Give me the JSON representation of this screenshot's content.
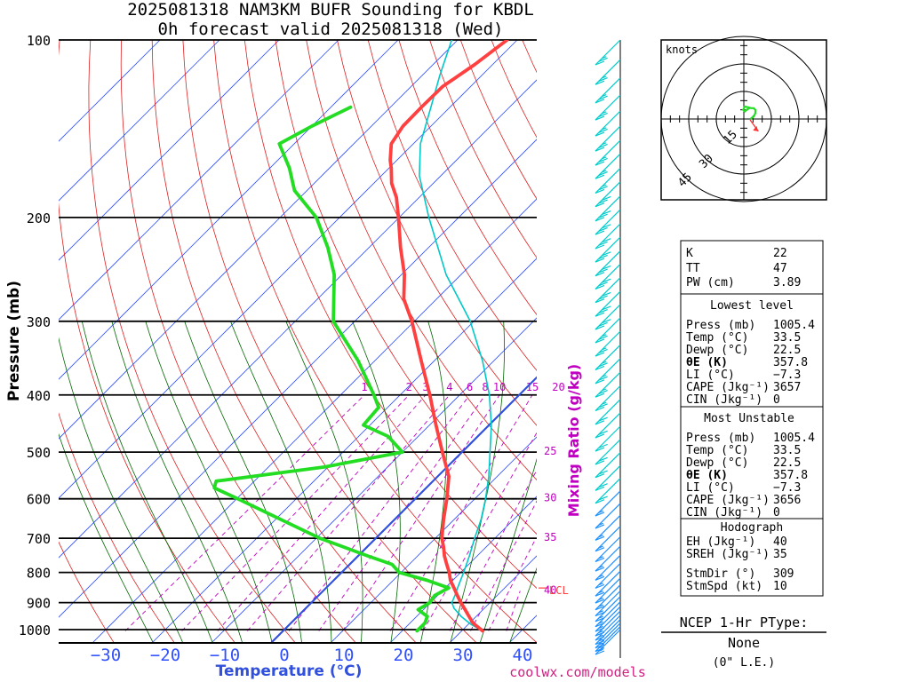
{
  "header": {
    "title_line1": "2025081318 NAM3KM BUFR Sounding for KBDL",
    "title_line2": "0h forecast valid 2025081318 (Wed)"
  },
  "footer": {
    "credit": "coolwx.com/models"
  },
  "colors": {
    "temperature": "#ff4040",
    "dewpoint": "#22dd22",
    "parcel": "#00c8c8",
    "freezing": "#3050dd",
    "isotherm": "#3050ff",
    "dry_adiabat": "#dd2020",
    "moist_adiabat": "#006600",
    "mixing_ratio": "#c000c0",
    "wind_upper": "#00cccc",
    "wind_lower": "#1e90ff",
    "lcl": "#ff4040"
  },
  "chart_data": [
    {
      "type": "line",
      "chart": "skew-T",
      "xlabel": "Temperature (°C)",
      "ylabel": "Pressure (mb)",
      "y_scale": "log",
      "xlim": [
        -40,
        40
      ],
      "ylim": [
        1050,
        100
      ],
      "x_ticks": [
        "−30",
        "−20",
        "−10",
        "0",
        "10",
        "20",
        "30",
        "40"
      ],
      "x_tick_values": [
        -30,
        -20,
        -10,
        0,
        10,
        20,
        30,
        40
      ],
      "y_ticks": [
        "100",
        "200",
        "300",
        "400",
        "500",
        "600",
        "700",
        "800",
        "900",
        "1000"
      ],
      "y_tick_values": [
        100,
        200,
        300,
        400,
        500,
        600,
        700,
        800,
        900,
        1000
      ],
      "grid": true,
      "mixing_ratio_label": "Mixing Ratio (g/kg)",
      "mixing_ratio_lines": [
        {
          "label": "1",
          "p": [
            1005,
            400
          ],
          "t": [
            -26.5,
            -26
          ]
        },
        {
          "label": "2",
          "p": [
            1005,
            400
          ],
          "t": [
            -17,
            -18.5
          ]
        },
        {
          "label": "3",
          "p": [
            1005,
            400
          ],
          "t": [
            -11,
            -15.7
          ]
        },
        {
          "label": "4",
          "p": [
            1005,
            400
          ],
          "t": [
            -6,
            -11.7
          ]
        },
        {
          "label": "6",
          "p": [
            1005,
            400
          ],
          "t": [
            1,
            -8.3
          ]
        },
        {
          "label": "8",
          "p": [
            1005,
            400
          ],
          "t": [
            6,
            -5.7
          ]
        },
        {
          "label": "10",
          "p": [
            1005,
            400
          ],
          "t": [
            10,
            -3.3
          ]
        },
        {
          "label": "15",
          "p": [
            1005,
            400
          ],
          "t": [
            18,
            2.2
          ]
        },
        {
          "label": "20",
          "p": [
            1005,
            400
          ],
          "t": [
            23.5,
            6.6
          ]
        },
        {
          "label": "25",
          "p": [
            1005,
            500
          ],
          "t": [
            28,
            14.2
          ]
        },
        {
          "label": "30",
          "p": [
            1005,
            600
          ],
          "t": [
            31.5,
            20.6
          ]
        },
        {
          "label": "35",
          "p": [
            1005,
            700
          ],
          "t": [
            34.5,
            26.9
          ]
        },
        {
          "label": "40",
          "p": [
            1005,
            860
          ],
          "t": [
            37.5,
            33.1
          ]
        }
      ],
      "lcl_label": "LCL",
      "lcl_pressure": 850,
      "series": [
        {
          "name": "Temperature",
          "p": [
            1005,
            975,
            950,
            925,
            900,
            875,
            850,
            825,
            800,
            775,
            750,
            725,
            700,
            650,
            600,
            550,
            500,
            450,
            400,
            350,
            300,
            275,
            250,
            225,
            200,
            185,
            175,
            165,
            160,
            150,
            140,
            130,
            120,
            110,
            100
          ],
          "t": [
            33.5,
            30.6,
            28.8,
            27,
            25.1,
            23.3,
            21.5,
            19.6,
            18.1,
            16.3,
            14.5,
            12.9,
            11.1,
            8.2,
            5.3,
            1.9,
            -3.3,
            -8.9,
            -15,
            -22.2,
            -30.4,
            -35.5,
            -39.5,
            -44.7,
            -50.1,
            -53.8,
            -57,
            -59.6,
            -61.1,
            -63.7,
            -64.7,
            -64.8,
            -64.7,
            -63,
            -61.7
          ]
        },
        {
          "name": "Dewpoint",
          "p": [
            1005,
            975,
            950,
            925,
            900,
            875,
            850,
            825,
            800,
            775,
            750,
            700,
            650,
            600,
            575,
            560,
            530,
            500,
            470,
            450,
            420,
            400,
            350,
            300,
            250,
            225,
            200,
            180,
            165,
            150,
            140,
            130
          ],
          "t": [
            22.5,
            22.5,
            21.8,
            19.1,
            19.9,
            19.5,
            20.6,
            15.7,
            9.7,
            7.1,
            1.6,
            -9.4,
            -19.2,
            -29.8,
            -35.6,
            -36.4,
            -20.6,
            -10,
            -15.1,
            -21.1,
            -21.5,
            -24.4,
            -32.8,
            -43.6,
            -51.3,
            -56.9,
            -63.9,
            -72.1,
            -76.7,
            -82.5,
            -80,
            -76.7
          ]
        },
        {
          "name": "Parcel",
          "p": [
            1005,
            980,
            950,
            920,
            900,
            875,
            850,
            800,
            750,
            700,
            650,
            600,
            550,
            500,
            450,
            400,
            350,
            300,
            250,
            200,
            170,
            150,
            130,
            115,
            100
          ],
          "t": [
            33.5,
            30.5,
            27.5,
            24.9,
            23.6,
            22.9,
            22.1,
            20.5,
            18.7,
            16.6,
            14.5,
            11.8,
            8.6,
            4.7,
            0.4,
            -5,
            -11.9,
            -20.6,
            -32.5,
            -45,
            -53.6,
            -58.8,
            -63.2,
            -67,
            -71
          ]
        },
        {
          "name": "Freezing",
          "p": [
            1050,
            100
          ],
          "t": [
            0,
            0
          ]
        }
      ]
    },
    {
      "type": "scatter",
      "chart": "hodograph",
      "unit_label": "knots",
      "ring_labels": [
        "15",
        "30",
        "45"
      ],
      "ring_values": [
        15,
        30,
        45
      ],
      "hodo_trace": {
        "u": [
          4.1,
          4.1,
          5.4,
          6.3,
          6.3,
          5.4,
          4.1,
          0.5,
          -0.3,
          0.5,
          2.3,
          3.2
        ],
        "v": [
          -0.4,
          0.5,
          1.4,
          3.2,
          5,
          5.9,
          5.9,
          6.8,
          5,
          4.1,
          5.5,
          5.9
        ]
      },
      "storm_motion": {
        "u": 7.9,
        "v": -6.7
      }
    }
  ],
  "wind_barbs": {
    "p": [
      100,
      108,
      116,
      124,
      132,
      140,
      148,
      156,
      165,
      174,
      184,
      194,
      205,
      216,
      228,
      240,
      253,
      267,
      281,
      296,
      312,
      329,
      347,
      366,
      386,
      407,
      429,
      452,
      476,
      501,
      527,
      554,
      582,
      611,
      640,
      668,
      696,
      722,
      748,
      772,
      796,
      818,
      840,
      860,
      879,
      897,
      914,
      930,
      946,
      961,
      975,
      988,
      1000
    ],
    "speed_kt": [
      25,
      25,
      25,
      25,
      25,
      25,
      25,
      25,
      25,
      30,
      30,
      30,
      30,
      30,
      30,
      30,
      30,
      30,
      30,
      25,
      25,
      25,
      25,
      25,
      25,
      20,
      20,
      20,
      20,
      20,
      20,
      20,
      15,
      15,
      15,
      15,
      15,
      15,
      15,
      15,
      15,
      15,
      15,
      15,
      15,
      15,
      15,
      15,
      15,
      15,
      15,
      15,
      15
    ]
  },
  "indices": {
    "k_label": "K",
    "k_value": "22",
    "tt_label": "TT",
    "tt_value": "47",
    "pw_label": "PW (cm)",
    "pw_value": "3.89"
  },
  "lowest_level": {
    "title": "Lowest level",
    "rows": [
      {
        "label": "Press (mb)",
        "value": "1005.4"
      },
      {
        "label": "Temp (°C)",
        "value": "33.5"
      },
      {
        "label": "Dewp (°C)",
        "value": "22.5"
      },
      {
        "label": "θE (K)",
        "value": "357.8"
      },
      {
        "label": "LI (°C)",
        "value": "−7.3"
      },
      {
        "label": "CAPE (Jkg⁻¹)",
        "value": "3657"
      },
      {
        "label": "CIN (Jkg⁻¹)",
        "value": "0"
      }
    ]
  },
  "most_unstable": {
    "title": "Most Unstable",
    "rows": [
      {
        "label": "Press (mb)",
        "value": "1005.4"
      },
      {
        "label": "Temp (°C)",
        "value": "33.5"
      },
      {
        "label": "Dewp (°C)",
        "value": "22.5"
      },
      {
        "label": "θE (K)",
        "value": "357.8"
      },
      {
        "label": "LI (°C)",
        "value": "−7.3"
      },
      {
        "label": "CAPE (Jkg⁻¹)",
        "value": "3656"
      },
      {
        "label": "CIN (Jkg⁻¹)",
        "value": "0"
      }
    ]
  },
  "hodograph_stats": {
    "title": "Hodograph",
    "rows": [
      {
        "label": "EH (Jkg⁻¹)",
        "value": "40"
      },
      {
        "label": "SREH (Jkg⁻¹)",
        "value": "35"
      },
      {
        "label": "StmDir (°)",
        "value": "309"
      },
      {
        "label": "StmSpd (kt)",
        "value": "10"
      }
    ]
  },
  "ptype": {
    "title": "NCEP 1-Hr PType:",
    "value": "None",
    "note": "(0\" L.E.)"
  }
}
